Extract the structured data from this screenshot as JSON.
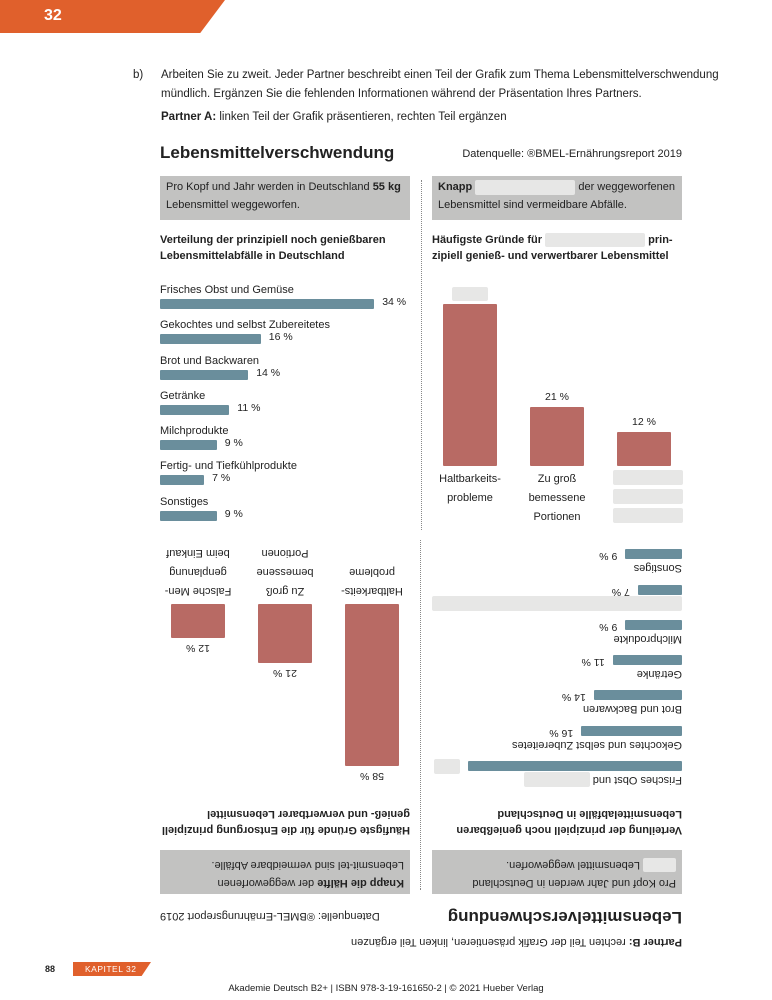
{
  "header": {
    "chapter_number": "32"
  },
  "task": {
    "letter": "b)",
    "text": "Arbeiten Sie zu zweit. Jeder Partner beschreibt einen Teil der Grafik zum Thema Lebensmittelverschwendung mündlich. Ergänzen Sie die fehlenden Informationen während der Präsentation Ihres Partners."
  },
  "partA": {
    "partner_bold": "Partner A:",
    "partner_rest": " linken Teil der Grafik präsentieren, rechten Teil ergänzen",
    "title": "Lebensmittelverschwendung",
    "source": "Datenquelle: ®BMEL-Ernährungsreport 2019",
    "box_left": {
      "pre": "Pro Kopf und Jahr werden in Deutschland ",
      "bold": "55 kg",
      "post": " Lebensmittel weggeworfen."
    },
    "box_right": {
      "bold": "Knapp",
      "post": " der weggeworfenen Lebensmittel sind vermeidbare Abfälle."
    },
    "list_title": "Verteilung der prinzipiell noch genießbaren Lebensmittelabfälle in Deutschland",
    "bars_title_pre": "Häufigste Gründe für",
    "bars_title_post": "prin-zipiell genieß- und verwertbarer Lebensmittel",
    "list": [
      {
        "label": "Frisches Obst und Gemüse",
        "value": "34 %",
        "pct": 34
      },
      {
        "label": "Gekochtes und selbst Zubereitetes",
        "value": "16 %",
        "pct": 16
      },
      {
        "label": "Brot und Backwaren",
        "value": "14 %",
        "pct": 14
      },
      {
        "label": "Getränke",
        "value": "11 %",
        "pct": 11
      },
      {
        "label": "Milchprodukte",
        "value": "9 %",
        "pct": 9
      },
      {
        "label": "Fertig- und Tiefkühlprodukte",
        "value": "7 %",
        "pct": 7
      },
      {
        "label": "Sonstiges",
        "value": "9 %",
        "pct": 9
      }
    ],
    "bars": [
      {
        "lines": [
          "Haltbarkeits-",
          "probleme"
        ],
        "value": null,
        "pct": 58
      },
      {
        "lines": [
          "Zu groß",
          "bemessene",
          "Portionen"
        ],
        "value": "21 %",
        "pct": 21
      },
      {
        "lines": null,
        "value": "12 %",
        "pct": 12
      }
    ]
  },
  "partB": {
    "partner_bold": "Partner B:",
    "partner_rest": " rechten Teil der Grafik präsentieren, linken Teil ergänzen",
    "title": "Lebensmittelverschwendung",
    "source": "Datenquelle: ®BMEL-Ernährungsreport 2019",
    "box_left": {
      "pre": "Pro Kopf und Jahr werden in Deutschland",
      "post": "Lebensmittel weggeworfen."
    },
    "box_right": {
      "bold": "Knapp die Hälfte",
      "post": " der weggeworfenen Lebensmit-tel sind vermeidbare Abfälle."
    },
    "list_title": "Verteilung der prinzipiell noch genießbaren Lebensmittelabfälle in Deutschland",
    "bars_title": "Häufigste Gründe für die Entsorgung prinzipiell genieß- und verwertbarer Lebensmittel",
    "list": [
      {
        "label": "Frisches Obst und",
        "label_blank": true,
        "value": null,
        "pct": 34
      },
      {
        "label": "Gekochtes und selbst Zubereitetes",
        "value": "16 %",
        "pct": 16
      },
      {
        "label": "Brot und Backwaren",
        "value": "14 %",
        "pct": 14
      },
      {
        "label": "Getränke",
        "value": "11 %",
        "pct": 11
      },
      {
        "label": "Milchprodukte",
        "value": "9 %",
        "pct": 9
      },
      {
        "label": null,
        "value": "7 %",
        "pct": 7
      },
      {
        "label": "Sonstiges",
        "value": "9 %",
        "pct": 9
      }
    ],
    "bars": [
      {
        "lines": [
          "Haltbarkeits-",
          "probleme"
        ],
        "value": "58 %",
        "pct": 58
      },
      {
        "lines": [
          "Zu groß",
          "bemessene",
          "Portionen"
        ],
        "value": "21 %",
        "pct": 21
      },
      {
        "lines": [
          "Falsche Men-",
          "genplanung",
          "beim Einkauf"
        ],
        "value": "12 %",
        "pct": 12
      }
    ]
  },
  "footer": {
    "page": "88",
    "chapter": "KAPITEL  32",
    "imprint": "Akademie Deutsch B2+ | ISBN 978-3-19-161650-2 | © 2021 Hueber Verlag"
  },
  "colors": {
    "accent": "#e0602c",
    "bar_blue": "#6a8e9c",
    "bar_red": "#b86a64",
    "box_gray": "#c2c2c1",
    "blank": "#e7e7e6"
  }
}
